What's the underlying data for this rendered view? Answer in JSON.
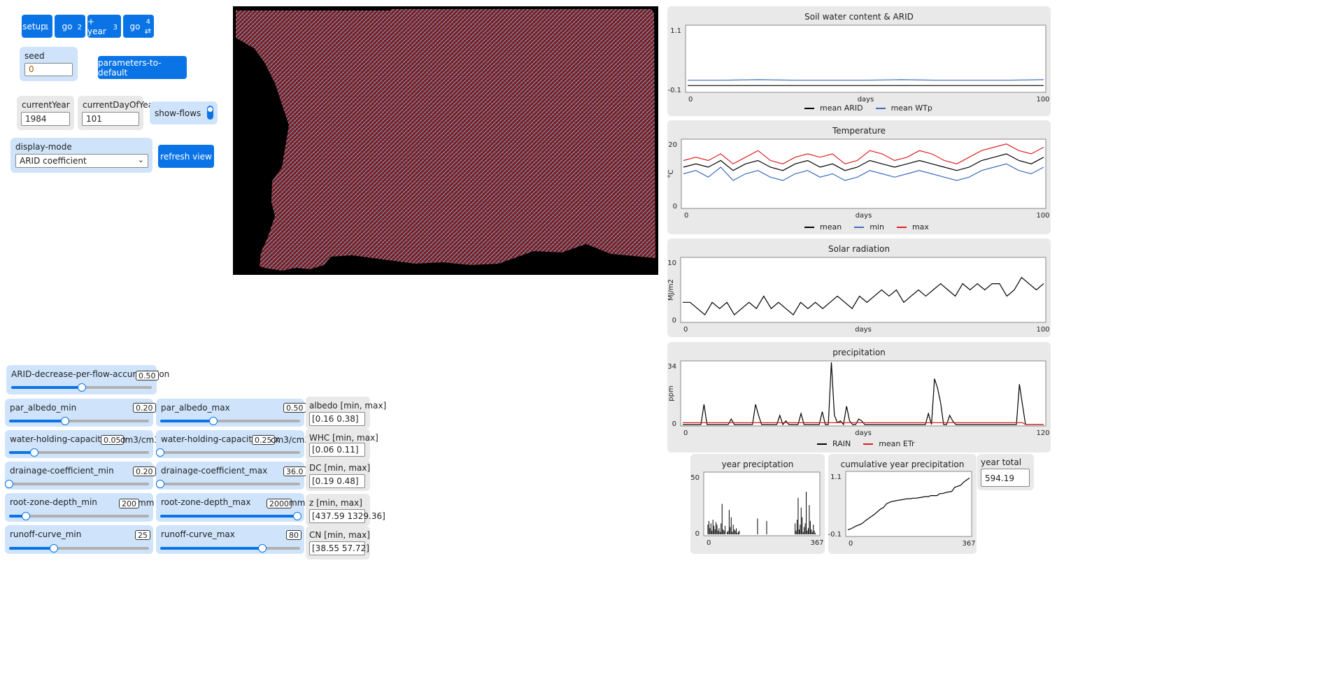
{
  "buttons": {
    "setup": {
      "label": "setup",
      "key": "1"
    },
    "go": {
      "label": "go",
      "key": "2"
    },
    "plus_year": {
      "label": "+ year",
      "key": "3"
    },
    "go_forever": {
      "label": "go",
      "key": "4"
    },
    "parameters_to_default": "parameters-to-default",
    "refresh_view": "refresh view"
  },
  "seed": {
    "label": "seed",
    "value": "0"
  },
  "current_year": {
    "label": "currentYear",
    "value": "1984"
  },
  "current_day": {
    "label": "currentDayOfYear",
    "value": "101"
  },
  "show_flows": {
    "label": "show-flows",
    "on": true
  },
  "display_mode": {
    "label": "display-mode",
    "value": "ARID coefficient"
  },
  "sliders": {
    "arid_decrease": {
      "label": "ARID-decrease-per-flow-accumulation",
      "value": "0.50",
      "fraction": 0.5,
      "unit": ""
    },
    "par_albedo_min": {
      "label": "par_albedo_min",
      "value": "0.20",
      "fraction": 0.4,
      "unit": ""
    },
    "par_albedo_max": {
      "label": "par_albedo_max",
      "value": "0.50",
      "fraction": 0.38,
      "unit": ""
    },
    "whc_min": {
      "label": "water-holding-capacity_min",
      "value": "0.05",
      "fraction": 0.18,
      "unit": "cm3/cm3"
    },
    "whc_max": {
      "label": "water-holding-capacity_max",
      "value": "0.25",
      "fraction": 0.0,
      "unit": "cm3/cm3"
    },
    "dc_min": {
      "label": "drainage-coefficient_min",
      "value": "0.20",
      "fraction": 0.0,
      "unit": ""
    },
    "dc_max": {
      "label": "drainage-coefficient_max",
      "value": "36.0",
      "fraction": 0.0,
      "unit": ""
    },
    "rzd_min": {
      "label": "root-zone-depth_min",
      "value": "200",
      "fraction": 0.12,
      "unit": "mm"
    },
    "rzd_max": {
      "label": "root-zone-depth_max",
      "value": "2000",
      "fraction": 0.98,
      "unit": "mm"
    },
    "rc_min": {
      "label": "runoff-curve_min",
      "value": "25",
      "fraction": 0.32,
      "unit": ""
    },
    "rc_max": {
      "label": "runoff-curve_max",
      "value": "80",
      "fraction": 0.73,
      "unit": ""
    }
  },
  "monitors": {
    "albedo": {
      "label": "albedo [min, max]",
      "value": "[0.16 0.38]"
    },
    "whc": {
      "label": "WHC [min, max]",
      "value": "[0.06 0.11]"
    },
    "dc": {
      "label": "DC [min, max]",
      "value": "[0.19 0.48]"
    },
    "z": {
      "label": "z [min, max]",
      "value": "[437.59 1329.36]"
    },
    "cn": {
      "label": "CN [min, max]",
      "value": "[38.55 57.72]"
    },
    "year_total": {
      "label": "year total",
      "value": "594.19"
    }
  },
  "colors": {
    "accent": "#0a74e6",
    "slider_panel": "#cfe4fb",
    "monitor_panel": "#e9e9e9",
    "plot_black": "#000000",
    "plot_blue": "#3b6cc2",
    "plot_red": "#e02020",
    "map_background": "#000000",
    "map_flow_red": "#8b1a1a",
    "map_flow_blue": "#6fa8dc"
  },
  "chart_data": [
    {
      "type": "line",
      "title": "Soil water content & ARID",
      "xlabel": "days",
      "ylabel": "",
      "xlim": [
        0,
        100
      ],
      "ylim": [
        -0.1,
        1.1
      ],
      "x_ticks": [
        "0",
        "100"
      ],
      "y_ticks": [
        "1.1",
        "-0.1"
      ],
      "series": [
        {
          "name": "mean ARID",
          "color": "#000000",
          "values": [
            0.0,
            0.0,
            0.0,
            0.0,
            0.0,
            0.0,
            0.0,
            0.0,
            0.0,
            0.0,
            0.0
          ]
        },
        {
          "name": "mean WTp",
          "color": "#3b6cc2",
          "values": [
            0.1,
            0.1,
            0.11,
            0.1,
            0.1,
            0.1,
            0.11,
            0.1,
            0.1,
            0.1,
            0.11
          ]
        }
      ]
    },
    {
      "type": "line",
      "title": "Temperature",
      "xlabel": "days",
      "ylabel": "°C",
      "xlim": [
        0,
        100
      ],
      "ylim": [
        0,
        20
      ],
      "x_ticks": [
        "0",
        "100"
      ],
      "y_ticks": [
        "20",
        "0"
      ],
      "series": [
        {
          "name": "mean",
          "color": "#000000",
          "values": [
            12,
            13,
            12,
            14,
            11,
            13,
            14,
            12,
            11,
            13,
            14,
            12,
            13,
            11,
            12,
            14,
            13,
            12,
            13,
            14,
            13,
            12,
            11,
            12,
            14,
            15,
            16,
            14,
            13,
            15
          ]
        },
        {
          "name": "min",
          "color": "#3b6cc2",
          "values": [
            10,
            11,
            9,
            12,
            8,
            10,
            11,
            9,
            8,
            10,
            11,
            9,
            10,
            8,
            9,
            11,
            10,
            9,
            10,
            11,
            10,
            9,
            8,
            9,
            11,
            12,
            13,
            11,
            10,
            12
          ]
        },
        {
          "name": "max",
          "color": "#e02020",
          "values": [
            14,
            15,
            14,
            16,
            13,
            15,
            17,
            14,
            13,
            15,
            16,
            15,
            16,
            13,
            14,
            17,
            16,
            14,
            15,
            17,
            16,
            14,
            13,
            15,
            17,
            18,
            19,
            17,
            16,
            18
          ]
        }
      ]
    },
    {
      "type": "line",
      "title": "Solar radiation",
      "xlabel": "days",
      "ylabel": "MJ/m2",
      "xlim": [
        0,
        100
      ],
      "ylim": [
        0,
        10
      ],
      "x_ticks": [
        "0",
        "100"
      ],
      "y_ticks": [
        "10",
        "0"
      ],
      "series": [
        {
          "name": "",
          "color": "#000000",
          "values": [
            3,
            3,
            2,
            1,
            3,
            2,
            3,
            1,
            2,
            3,
            2,
            4,
            2,
            3,
            2,
            1,
            3,
            2,
            3,
            2,
            3,
            4,
            3,
            2,
            4,
            3,
            4,
            5,
            4,
            5,
            3,
            4,
            5,
            4,
            5,
            6,
            5,
            4,
            6,
            5,
            6,
            5,
            6,
            6,
            4,
            5,
            7,
            6,
            5,
            6
          ]
        }
      ]
    },
    {
      "type": "line",
      "title": "precipitation",
      "xlabel": "days",
      "ylabel": "ppm",
      "xlim": [
        0,
        120
      ],
      "ylim": [
        0,
        34
      ],
      "x_ticks": [
        "0",
        "120"
      ],
      "y_ticks": [
        "34",
        "0"
      ],
      "series": [
        {
          "name": "RAIN",
          "color": "#000000",
          "values": [
            0,
            0,
            0,
            0,
            0,
            0,
            0,
            11,
            0,
            0,
            0,
            0,
            0,
            0,
            0,
            0,
            3,
            0,
            0,
            0,
            0,
            0,
            0,
            0,
            11,
            5,
            0,
            0,
            0,
            0,
            0,
            0,
            5,
            0,
            2,
            0,
            0,
            0,
            0,
            6,
            0,
            0,
            0,
            0,
            0,
            0,
            7,
            0,
            0,
            34,
            5,
            1,
            2,
            0,
            10,
            2,
            0,
            0,
            3,
            2,
            0,
            0,
            0,
            0,
            0,
            0,
            0,
            0,
            0,
            0,
            0,
            0,
            0,
            0,
            0,
            0,
            0,
            0,
            0,
            0,
            0,
            6,
            0,
            25,
            20,
            12,
            0,
            0,
            5,
            2,
            0,
            0,
            0,
            0,
            0,
            0,
            0,
            0,
            0,
            0,
            0,
            0,
            0,
            0,
            0,
            0,
            0,
            0,
            0,
            0,
            0,
            22,
            11,
            0,
            0,
            0,
            0,
            0,
            0,
            0
          ]
        },
        {
          "name": "mean ETr",
          "color": "#e02020",
          "values": [
            1,
            1,
            1,
            1,
            1,
            1,
            1,
            1,
            1,
            1,
            1,
            1,
            1,
            1,
            1,
            1,
            1,
            1,
            1,
            1,
            1,
            1,
            1,
            1,
            1,
            1,
            1,
            1,
            1,
            1,
            1,
            1,
            1,
            1,
            1,
            1,
            1,
            1,
            1,
            1,
            1,
            1,
            1,
            1,
            1,
            1,
            1,
            1,
            1,
            1,
            1,
            1,
            1,
            1,
            1,
            1,
            1,
            1,
            1,
            1,
            1,
            1,
            1,
            1,
            1,
            1,
            1,
            1,
            1,
            1,
            1,
            1,
            1,
            1,
            1,
            1,
            1,
            1,
            1,
            1,
            1,
            1,
            1,
            1,
            1,
            1,
            1,
            1,
            1,
            1,
            1,
            1,
            1,
            1,
            1,
            1,
            1,
            1,
            1,
            1,
            1,
            1,
            1,
            1,
            1,
            1,
            1,
            1,
            1,
            1,
            1,
            1,
            1,
            0,
            0,
            0,
            0,
            0,
            0,
            0
          ]
        }
      ]
    },
    {
      "type": "bar",
      "title": "year preciptation",
      "xlabel": "",
      "ylabel": "",
      "xlim": [
        0,
        367
      ],
      "ylim": [
        0,
        50
      ],
      "x_ticks": [
        "0",
        "367"
      ],
      "y_ticks": [
        "50",
        "0"
      ],
      "series": [
        {
          "name": "",
          "color": "#000000",
          "values": [
            0,
            8,
            11,
            5,
            9,
            3,
            12,
            7,
            4,
            10,
            8,
            3,
            5,
            2,
            9,
            25,
            4,
            3,
            7,
            0,
            2,
            3,
            20,
            6,
            14,
            2,
            8,
            4,
            3,
            5,
            1,
            2,
            3,
            0,
            0,
            0,
            0,
            0,
            0,
            0,
            0,
            0,
            0,
            0,
            0,
            0,
            0,
            0,
            0,
            0,
            13,
            0,
            0,
            0,
            0,
            0,
            0,
            0,
            0,
            11,
            0,
            0,
            0,
            0,
            0,
            0,
            0,
            0,
            0,
            0,
            0,
            0,
            0,
            0,
            0,
            0,
            0,
            0,
            0,
            0,
            0,
            0,
            0,
            0,
            0,
            0,
            0,
            9,
            3,
            12,
            30,
            4,
            8,
            22,
            14,
            2,
            6,
            9,
            35,
            3,
            5,
            24,
            11,
            4,
            2,
            8,
            3,
            1,
            0
          ]
        }
      ]
    },
    {
      "type": "line",
      "title": "cumulative year precipitation",
      "xlabel": "",
      "ylabel": "",
      "xlim": [
        0,
        367
      ],
      "ylim": [
        -0.1,
        1.1
      ],
      "x_ticks": [
        "0",
        "367"
      ],
      "y_ticks": [
        "1.1",
        "-0.1"
      ],
      "series": [
        {
          "name": "",
          "color": "#000000",
          "values": [
            0.0,
            0.02,
            0.05,
            0.08,
            0.1,
            0.13,
            0.18,
            0.22,
            0.26,
            0.3,
            0.35,
            0.4,
            0.43,
            0.5,
            0.53,
            0.55,
            0.56,
            0.57,
            0.58,
            0.59,
            0.6,
            0.6,
            0.61,
            0.61,
            0.62,
            0.63,
            0.64,
            0.64,
            0.66,
            0.66,
            0.66,
            0.7,
            0.7,
            0.72,
            0.73,
            0.74,
            0.82,
            0.84,
            0.86,
            0.92,
            0.96,
            1.0
          ]
        }
      ]
    }
  ]
}
